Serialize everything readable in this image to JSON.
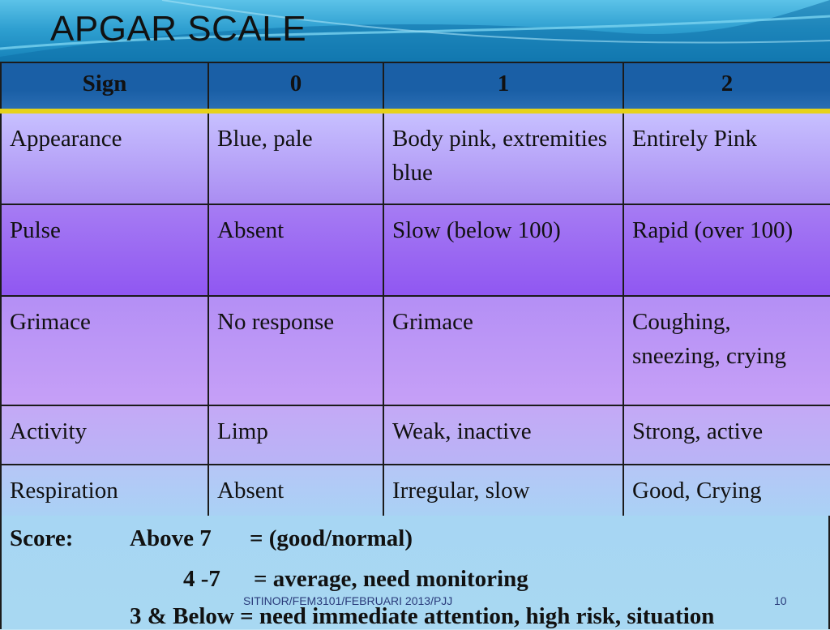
{
  "slide": {
    "title": "APGAR SCALE",
    "footer_text": "SITINOR/FEM3101/FEBRUARI 2013/PJJ",
    "page_number": "10"
  },
  "table": {
    "headers": [
      "Sign",
      "0",
      "1",
      "2"
    ],
    "rows": [
      [
        "Appearance",
        "Blue, pale",
        "Body pink, extremities blue",
        "Entirely Pink"
      ],
      [
        "Pulse",
        "Absent",
        "Slow (below 100)",
        "Rapid (over 100)"
      ],
      [
        "Grimace",
        "No response",
        "Grimace",
        "Coughing, sneezing, crying"
      ],
      [
        "Activity",
        "Limp",
        "Weak, inactive",
        "Strong, active"
      ],
      [
        "Respiration",
        "Absent",
        "Irregular, slow",
        "Good, Crying"
      ]
    ]
  },
  "score": {
    "label": "Score:",
    "line1_range": "Above 7",
    "line1_meaning": "=  (good/normal)",
    "line2_range": "4 -7",
    "line2_meaning": "= average, need monitoring",
    "line3_text": "3 & Below = need immediate attention, high risk, situation"
  },
  "colors": {
    "header_blue": "#1a5fa6",
    "header_rule": "#e6d21a",
    "row_purple": "#9057f2",
    "score_blue": "#a7d6f3"
  }
}
